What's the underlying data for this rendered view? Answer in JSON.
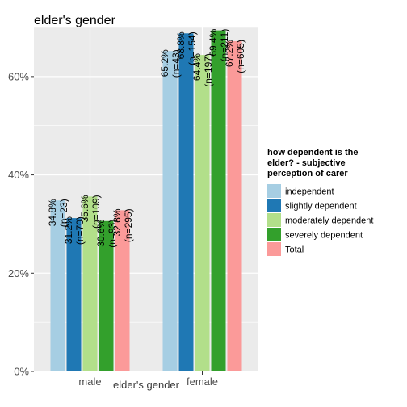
{
  "chart_data": {
    "type": "bar",
    "title": "elder's gender",
    "xlabel": "elder's gender",
    "ylabel": "",
    "categories": [
      "male",
      "female"
    ],
    "ylim": [
      0,
      0.7
    ],
    "yticks": [
      {
        "value": 0,
        "label": "0%"
      },
      {
        "value": 0.2,
        "label": "20%"
      },
      {
        "value": 0.4,
        "label": "40%"
      },
      {
        "value": 0.6,
        "label": "60%"
      }
    ],
    "grid": true,
    "legend_position": "right",
    "legend_title": "how dependent is the elder? - subjective perception of carer",
    "legend_title_lines": [
      "how dependent is the",
      "elder? - subjective",
      "perception of carer"
    ],
    "series": [
      {
        "name": "independent",
        "color": "#a6cee3",
        "values": [
          0.348,
          0.652
        ],
        "labels": [
          "34.8%",
          "65.2%"
        ],
        "counts": [
          "(n=23)",
          "(n=43)"
        ]
      },
      {
        "name": "slightly dependent",
        "color": "#1f78b4",
        "values": [
          0.312,
          0.688
        ],
        "labels": [
          "31.2%",
          "68.8%"
        ],
        "counts": [
          "(n=70)",
          "(n=154)"
        ]
      },
      {
        "name": "moderately dependent",
        "color": "#b2df8a",
        "values": [
          0.356,
          0.644
        ],
        "labels": [
          "35.6%",
          "64.4%"
        ],
        "counts": [
          "(n=109)",
          "(n=197)"
        ]
      },
      {
        "name": "severely dependent",
        "color": "#33a02c",
        "values": [
          0.306,
          0.694
        ],
        "labels": [
          "30.6%",
          "69.4%"
        ],
        "counts": [
          "(n=93)",
          "(n=211)"
        ]
      },
      {
        "name": "Total",
        "color": "#fb9a99",
        "values": [
          0.328,
          0.672
        ],
        "labels": [
          "32.8%",
          "67.2%"
        ],
        "counts": [
          "(n=295)",
          "(n=605)"
        ]
      }
    ]
  }
}
